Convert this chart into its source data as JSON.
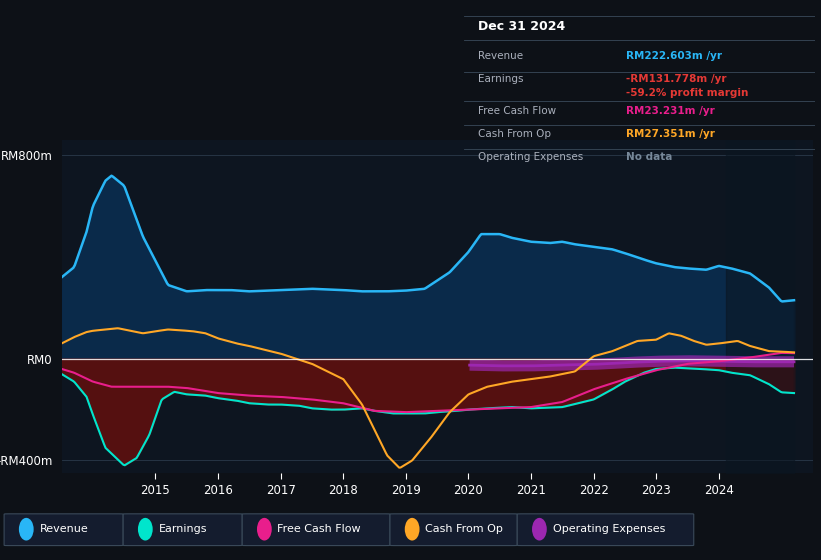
{
  "bg_color": "#0d1117",
  "panel_bg": "#0d1520",
  "right_panel_bg": "#111a27",
  "colors": {
    "revenue": "#29b6f6",
    "earnings": "#00e5cc",
    "free_cash_flow": "#e91e8c",
    "cash_from_op": "#ffa726",
    "op_expenses": "#9c27b0",
    "revenue_fill": "#0a2a4a",
    "earnings_fill_neg": "#5a1010",
    "zero_line": "#cccccc"
  },
  "ylim": [
    -450,
    860
  ],
  "xlim": [
    2013.5,
    2025.5
  ],
  "yticks": [
    -400,
    0,
    800
  ],
  "ytick_labels": [
    "-RM400m",
    "RM0",
    "RM800m"
  ],
  "xticks": [
    2015,
    2016,
    2017,
    2018,
    2019,
    2020,
    2021,
    2022,
    2023,
    2024
  ],
  "info_box": {
    "rows": [
      {
        "label": "Revenue",
        "value": "RM222.603m /yr",
        "value_color": "#29b6f6"
      },
      {
        "label": "Earnings",
        "value": "-RM131.778m /yr",
        "value_color": "#e53935",
        "sub": "-59.2% profit margin",
        "sub_color": "#e53935"
      },
      {
        "label": "Free Cash Flow",
        "value": "RM23.231m /yr",
        "value_color": "#e91e8c"
      },
      {
        "label": "Cash From Op",
        "value": "RM27.351m /yr",
        "value_color": "#ffa726"
      },
      {
        "label": "Operating Expenses",
        "value": "No data",
        "value_color": "#778899"
      }
    ]
  },
  "legend_items": [
    {
      "label": "Revenue",
      "color": "#29b6f6"
    },
    {
      "label": "Earnings",
      "color": "#00e5cc"
    },
    {
      "label": "Free Cash Flow",
      "color": "#e91e8c"
    },
    {
      "label": "Cash From Op",
      "color": "#ffa726"
    },
    {
      "label": "Operating Expenses",
      "color": "#9c27b0"
    }
  ]
}
